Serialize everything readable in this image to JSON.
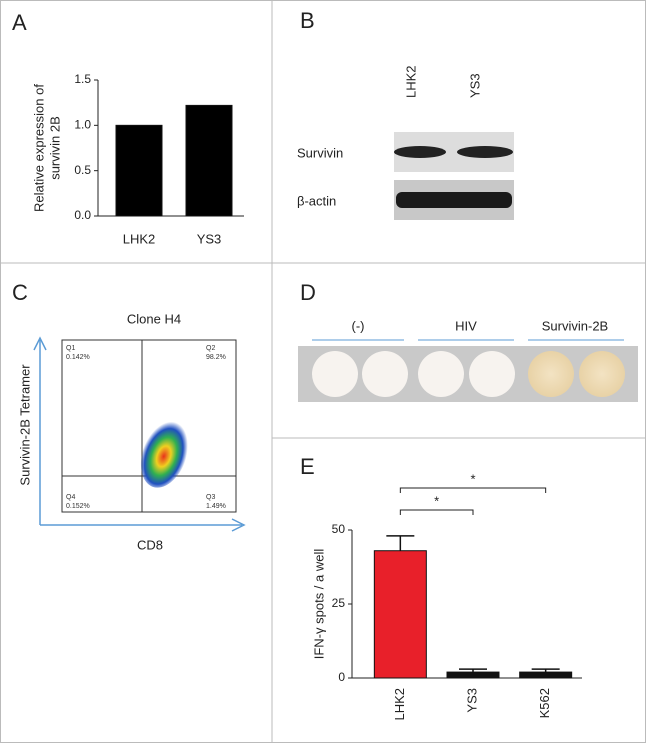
{
  "panel_labels": [
    "A",
    "B",
    "C",
    "D",
    "E"
  ],
  "chart_data": [
    {
      "type": "bar",
      "y_label": [
        "Relative expression of",
        "survivin 2B"
      ],
      "categories": [
        "LHK2",
        "YS3"
      ],
      "values": [
        1.0,
        1.22
      ],
      "color": "#000000",
      "ylim": [
        0,
        1.5
      ],
      "yticks": [
        {
          "value": 0,
          "label": "0.0"
        },
        0.5,
        {
          "value": 1,
          "label": "1.0"
        },
        1.5
      ]
    },
    {
      "type": "bar",
      "y_label": "IFN-γ spots / a well",
      "categories": [
        "LHK2",
        "YS3",
        "K562"
      ],
      "values": [
        43,
        2,
        2
      ],
      "errors": [
        5,
        1,
        1
      ],
      "colors": [
        "#e8202a",
        "#111111",
        "#111111"
      ],
      "ylim": [
        0,
        50
      ],
      "yticks": [
        0,
        25,
        50
      ],
      "annotations": [
        "*",
        "*"
      ]
    }
  ],
  "blot": {
    "lanes": [
      "LHK2",
      "YS3"
    ],
    "rows": [
      "Survivin",
      "β-actin"
    ]
  },
  "flow": {
    "title": "Clone H4",
    "y_label": "Survivin-2B Tetramer",
    "x_label": "CD8",
    "quadrants": [
      {
        "name": "Q1",
        "value": "0.142%"
      },
      {
        "name": "Q2",
        "value": "98.2%"
      },
      {
        "name": "Q4",
        "value": "0.152%"
      },
      {
        "name": "Q3",
        "value": "1.49%"
      }
    ]
  },
  "wells": {
    "groups": [
      "(-)",
      "HIV",
      "Survivin-2B"
    ]
  }
}
